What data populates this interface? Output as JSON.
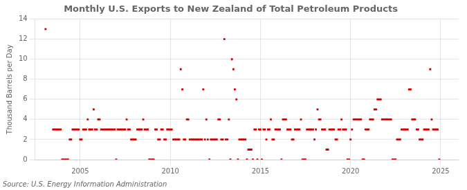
{
  "chart_data": {
    "type": "scatter",
    "title": "Monthly U.S. Exports to New Zealand of Total Petroleum Products",
    "ylabel": "Thousand Barrels per Day",
    "annotation": "Source: U.S. Energy Information Administration",
    "color": "#cc0000",
    "marker": "square",
    "grid": true,
    "xlim": [
      2002.5,
      2026.0
    ],
    "ylim": [
      0,
      14
    ],
    "xticks": [
      2005,
      2010,
      2015,
      2020,
      2025
    ],
    "yticks": [
      0,
      2,
      4,
      6,
      8,
      10,
      12,
      14
    ],
    "x": [
      2003.08,
      2003.5,
      2003.58,
      2003.67,
      2003.75,
      2003.83,
      2003.92,
      2004.0,
      2004.08,
      2004.17,
      2004.25,
      2004.33,
      2004.42,
      2004.5,
      2004.58,
      2004.67,
      2004.75,
      2004.83,
      2004.92,
      2005.0,
      2005.08,
      2005.17,
      2005.25,
      2005.33,
      2005.42,
      2005.5,
      2005.58,
      2005.67,
      2005.75,
      2005.83,
      2005.92,
      2006.0,
      2006.08,
      2006.17,
      2006.25,
      2006.33,
      2006.42,
      2006.5,
      2006.58,
      2006.67,
      2006.75,
      2006.83,
      2006.92,
      2007.0,
      2007.08,
      2007.17,
      2007.25,
      2007.33,
      2007.42,
      2007.5,
      2007.58,
      2007.67,
      2007.75,
      2007.83,
      2007.92,
      2008.0,
      2008.08,
      2008.17,
      2008.25,
      2008.33,
      2008.42,
      2008.5,
      2008.58,
      2008.67,
      2008.75,
      2008.83,
      2008.92,
      2009.0,
      2009.08,
      2009.17,
      2009.25,
      2009.33,
      2009.42,
      2009.5,
      2009.58,
      2009.67,
      2009.75,
      2009.83,
      2009.92,
      2010.0,
      2010.08,
      2010.17,
      2010.25,
      2010.33,
      2010.42,
      2010.5,
      2010.58,
      2010.67,
      2010.75,
      2010.83,
      2010.92,
      2011.0,
      2011.08,
      2011.17,
      2011.25,
      2011.33,
      2011.42,
      2011.5,
      2011.58,
      2011.67,
      2011.75,
      2011.83,
      2011.92,
      2012.0,
      2012.08,
      2012.17,
      2012.25,
      2012.33,
      2012.42,
      2012.5,
      2012.58,
      2012.67,
      2012.75,
      2012.83,
      2012.92,
      2013.0,
      2013.08,
      2013.17,
      2013.25,
      2013.33,
      2013.42,
      2013.5,
      2013.58,
      2013.67,
      2013.75,
      2013.83,
      2013.92,
      2014.0,
      2014.08,
      2014.17,
      2014.25,
      2014.33,
      2014.42,
      2014.5,
      2014.58,
      2014.67,
      2014.75,
      2014.83,
      2014.92,
      2015.0,
      2015.08,
      2015.17,
      2015.25,
      2015.33,
      2015.42,
      2015.5,
      2015.58,
      2015.67,
      2015.75,
      2015.83,
      2015.92,
      2016.0,
      2016.08,
      2016.17,
      2016.25,
      2016.33,
      2016.42,
      2016.5,
      2016.58,
      2016.67,
      2016.75,
      2016.83,
      2016.92,
      2017.0,
      2017.08,
      2017.17,
      2017.25,
      2017.33,
      2017.42,
      2017.5,
      2017.58,
      2017.67,
      2017.75,
      2017.83,
      2017.92,
      2018.0,
      2018.08,
      2018.17,
      2018.25,
      2018.33,
      2018.42,
      2018.5,
      2018.58,
      2018.67,
      2018.75,
      2018.83,
      2018.92,
      2019.0,
      2019.08,
      2019.17,
      2019.25,
      2019.33,
      2019.42,
      2019.5,
      2019.58,
      2019.67,
      2019.75,
      2019.83,
      2019.92,
      2020.0,
      2020.08,
      2020.17,
      2020.25,
      2020.33,
      2020.42,
      2020.5,
      2020.58,
      2020.67,
      2020.75,
      2020.83,
      2020.92,
      2021.0,
      2021.08,
      2021.17,
      2021.25,
      2021.33,
      2021.42,
      2021.5,
      2021.58,
      2021.67,
      2021.75,
      2021.83,
      2021.92,
      2022.0,
      2022.08,
      2022.17,
      2022.25,
      2022.33,
      2022.42,
      2022.5,
      2022.58,
      2022.67,
      2022.75,
      2022.83,
      2022.92,
      2023.0,
      2023.08,
      2023.17,
      2023.25,
      2023.33,
      2023.42,
      2023.5,
      2023.58,
      2023.67,
      2023.75,
      2023.83,
      2023.92,
      2024.0,
      2024.08,
      2024.17,
      2024.25,
      2024.33,
      2024.42,
      2024.5,
      2024.58,
      2024.67,
      2024.75,
      2024.83,
      2024.92
    ],
    "values": [
      13.0,
      3.0,
      3.0,
      3.0,
      3.0,
      3.0,
      3.0,
      0.0,
      0.0,
      0.0,
      0.0,
      0.0,
      2.0,
      2.0,
      3.0,
      3.0,
      3.0,
      3.0,
      3.0,
      2.0,
      2.0,
      3.0,
      3.0,
      3.0,
      4.0,
      3.0,
      3.0,
      3.0,
      5.0,
      3.0,
      3.0,
      4.0,
      4.0,
      3.0,
      3.0,
      3.0,
      3.0,
      3.0,
      3.0,
      3.0,
      3.0,
      3.0,
      3.0,
      0.0,
      3.0,
      3.0,
      3.0,
      3.0,
      3.0,
      3.0,
      4.0,
      3.0,
      3.0,
      2.0,
      2.0,
      2.0,
      2.0,
      3.0,
      3.0,
      3.0,
      3.0,
      4.0,
      3.0,
      3.0,
      3.0,
      0.0,
      0.0,
      0.0,
      0.0,
      3.0,
      3.0,
      2.0,
      2.0,
      3.0,
      3.0,
      2.0,
      2.0,
      3.0,
      3.0,
      3.0,
      3.0,
      2.0,
      2.0,
      2.0,
      2.0,
      2.0,
      9.0,
      7.0,
      2.0,
      2.0,
      4.0,
      4.0,
      2.0,
      2.0,
      2.0,
      2.0,
      2.0,
      2.0,
      2.0,
      2.0,
      2.0,
      7.0,
      2.0,
      4.0,
      2.0,
      0.0,
      2.0,
      2.0,
      2.0,
      2.0,
      2.0,
      4.0,
      4.0,
      2.0,
      2.0,
      12.0,
      2.0,
      2.0,
      4.0,
      0.0,
      10.0,
      9.0,
      7.0,
      6.0,
      0.0,
      2.0,
      2.0,
      2.0,
      2.0,
      2.0,
      0.0,
      1.0,
      1.0,
      1.0,
      0.0,
      3.0,
      3.0,
      0.0,
      3.0,
      3.0,
      0.0,
      3.0,
      3.0,
      2.0,
      3.0,
      3.0,
      4.0,
      2.0,
      2.0,
      3.0,
      3.0,
      3.0,
      3.0,
      0.0,
      4.0,
      4.0,
      4.0,
      3.0,
      3.0,
      3.0,
      2.0,
      2.0,
      3.0,
      3.0,
      3.0,
      3.0,
      4.0,
      0.0,
      0.0,
      0.0,
      3.0,
      3.0,
      3.0,
      3.0,
      3.0,
      2.0,
      3.0,
      5.0,
      4.0,
      4.0,
      3.0,
      3.0,
      3.0,
      1.0,
      1.0,
      3.0,
      3.0,
      3.0,
      3.0,
      2.0,
      2.0,
      3.0,
      3.0,
      4.0,
      3.0,
      3.0,
      3.0,
      0.0,
      0.0,
      2.0,
      3.0,
      4.0,
      4.0,
      4.0,
      4.0,
      4.0,
      4.0,
      0.0,
      0.0,
      3.0,
      3.0,
      3.0,
      4.0,
      4.0,
      4.0,
      5.0,
      5.0,
      6.0,
      6.0,
      6.0,
      4.0,
      4.0,
      4.0,
      4.0,
      4.0,
      4.0,
      4.0,
      0.0,
      0.0,
      0.0,
      2.0,
      2.0,
      2.0,
      3.0,
      3.0,
      3.0,
      3.0,
      3.0,
      7.0,
      7.0,
      4.0,
      4.0,
      4.0,
      3.0,
      3.0,
      2.0,
      2.0,
      2.0,
      3.0,
      3.0,
      3.0,
      3.0,
      9.0,
      4.0,
      3.0,
      3.0,
      3.0,
      3.0,
      0.0
    ]
  }
}
